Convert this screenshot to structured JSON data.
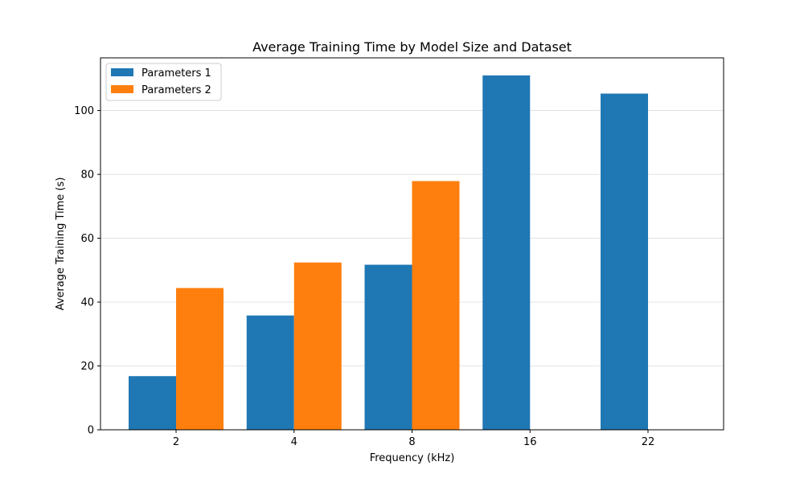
{
  "chart_data": {
    "type": "bar",
    "title": "Average Training Time by Model Size and Dataset",
    "xlabel": "Frequency (kHz)",
    "ylabel": "Average Training Time (s)",
    "categories": [
      "2",
      "4",
      "8",
      "16",
      "22"
    ],
    "series": [
      {
        "name": "Parameters 1",
        "color": "#1f77b4",
        "values": [
          16.8,
          35.8,
          51.7,
          111.0,
          105.3
        ]
      },
      {
        "name": "Parameters 2",
        "color": "#ff7f0e",
        "values": [
          44.4,
          52.4,
          77.9,
          null,
          null
        ]
      }
    ],
    "ylim": [
      0,
      116.5
    ],
    "yticks": [
      0,
      20,
      40,
      60,
      80,
      100
    ],
    "grid": "horizontal",
    "legend": "top-left"
  }
}
